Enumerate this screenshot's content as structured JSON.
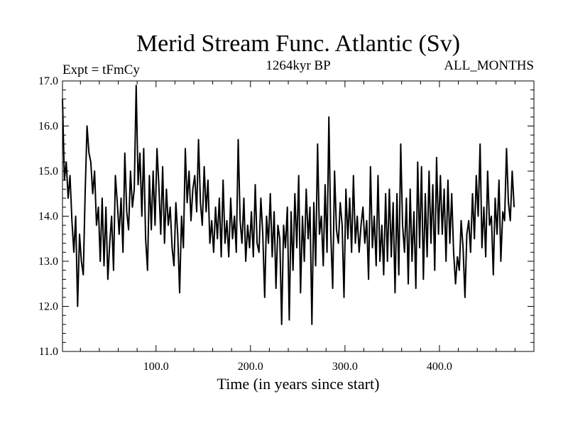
{
  "chart_data": {
    "type": "line",
    "title": "Merid Stream Func. Atlantic (Sv)",
    "subtitle_left": "Expt = tFmCy",
    "subtitle_center": "1264kyr BP",
    "subtitle_right": "ALL_MONTHS",
    "xlabel": "Time (in years since start)",
    "ylabel": "",
    "xlim": [
      1,
      500
    ],
    "ylim": [
      11.0,
      17.0
    ],
    "x_ticks": [
      100,
      200,
      300,
      400
    ],
    "x_tick_labels": [
      "100.0",
      "200.0",
      "300.0",
      "400.0"
    ],
    "y_ticks": [
      11,
      12,
      13,
      14,
      15,
      16,
      17
    ],
    "y_tick_labels": [
      "11.0",
      "12.0",
      "13.0",
      "14.0",
      "15.0",
      "16.0",
      "17.0"
    ],
    "series": [
      {
        "name": "Merid Stream Func. Atlantic",
        "x_start": 1,
        "x_step": 2,
        "values": [
          16.6,
          14.8,
          15.2,
          14.4,
          14.9,
          13.9,
          13.2,
          14.0,
          12.0,
          13.6,
          13.0,
          12.7,
          14.5,
          16.0,
          15.4,
          15.2,
          14.5,
          15.0,
          13.8,
          14.2,
          13.0,
          14.4,
          12.9,
          14.2,
          12.6,
          13.4,
          14.0,
          12.8,
          14.9,
          14.3,
          13.6,
          14.4,
          13.2,
          15.4,
          14.1,
          13.7,
          15.0,
          14.2,
          14.6,
          16.9,
          14.7,
          15.4,
          14.0,
          15.5,
          13.5,
          12.8,
          14.9,
          13.7,
          15.0,
          13.8,
          15.5,
          14.7,
          13.6,
          15.1,
          13.4,
          14.6,
          13.8,
          14.2,
          13.3,
          12.9,
          14.3,
          13.6,
          12.3,
          14.0,
          13.3,
          15.5,
          14.3,
          15.0,
          13.9,
          14.6,
          14.9,
          14.1,
          15.7,
          14.3,
          13.8,
          15.1,
          14.1,
          14.8,
          13.4,
          13.9,
          13.2,
          14.2,
          13.5,
          14.4,
          13.1,
          14.8,
          13.4,
          13.9,
          13.1,
          14.4,
          13.5,
          14.0,
          13.2,
          15.7,
          13.9,
          13.4,
          14.4,
          13.0,
          13.8,
          13.3,
          14.1,
          13.1,
          14.7,
          13.4,
          13.2,
          14.4,
          13.6,
          12.2,
          14.0,
          13.4,
          14.5,
          13.1,
          14.1,
          12.4,
          13.8,
          13.5,
          11.6,
          13.8,
          13.3,
          14.2,
          11.7,
          14.1,
          12.8,
          14.5,
          13.3,
          14.9,
          12.3,
          14.0,
          13.0,
          14.6,
          13.5,
          14.2,
          11.6,
          14.3,
          12.9,
          15.6,
          13.6,
          14.0,
          12.9,
          14.7,
          13.2,
          16.2,
          13.6,
          12.4,
          15.0,
          13.7,
          13.4,
          14.3,
          13.8,
          12.2,
          14.6,
          13.5,
          14.4,
          13.2,
          14.9,
          13.4,
          14.0,
          13.2,
          13.8,
          14.2,
          13.4,
          13.9,
          12.6,
          15.1,
          13.3,
          14.0,
          12.9,
          14.9,
          13.0,
          13.8,
          12.7,
          14.5,
          13.0,
          14.6,
          13.1,
          14.3,
          12.3,
          14.5,
          12.7,
          15.6,
          13.8,
          13.2,
          14.4,
          12.5,
          14.6,
          13.0,
          14.1,
          12.4,
          15.2,
          13.3,
          15.1,
          12.6,
          14.5,
          13.1,
          15.0,
          13.4,
          14.7,
          12.8,
          15.3,
          13.6,
          14.9,
          13.6,
          14.6,
          13.0,
          14.8,
          13.4,
          14.5,
          13.2,
          12.5,
          13.1,
          12.8,
          13.9,
          13.3,
          12.2,
          13.6,
          13.9,
          13.2,
          14.5,
          13.5,
          14.9,
          14.0,
          15.6,
          13.3,
          14.2,
          13.1,
          15.0,
          13.8,
          14.0,
          12.7,
          14.4,
          13.6,
          14.8,
          13.0,
          14.1,
          13.9,
          15.5,
          14.3,
          13.9,
          15.0,
          14.2
        ]
      }
    ]
  }
}
